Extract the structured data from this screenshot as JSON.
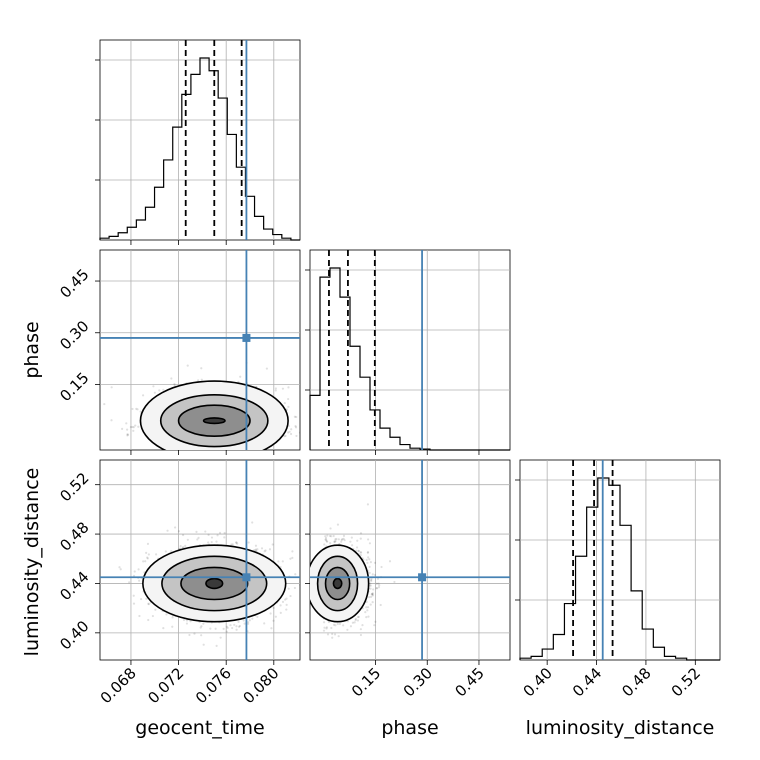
{
  "chart_data": {
    "type": "corner",
    "parameters": [
      "geocent_time",
      "phase",
      "luminosity_distance"
    ],
    "ranges": {
      "geocent_time": [
        0.0654,
        0.0822
      ],
      "phase": [
        -0.04,
        0.54
      ],
      "luminosity_distance": [
        0.378,
        0.54
      ]
    },
    "ticks": {
      "geocent_time": [
        0.068,
        0.072,
        0.076,
        0.08
      ],
      "phase": [
        0.15,
        0.3,
        0.45
      ],
      "luminosity_distance": [
        0.4,
        0.44,
        0.48,
        0.52
      ]
    },
    "tick_labels": {
      "geocent_time": [
        "0.068",
        "0.072",
        "0.076",
        "0.080"
      ],
      "phase": [
        "0.15",
        "0.30",
        "0.45"
      ],
      "luminosity_distance": [
        "0.40",
        "0.44",
        "0.48",
        "0.52"
      ]
    },
    "truths": {
      "geocent_time": 0.0777,
      "phase": 0.285,
      "luminosity_distance": 0.445
    },
    "quantiles": {
      "geocent_time": [
        0.0726,
        0.075,
        0.0773
      ],
      "phase": [
        0.015,
        0.07,
        0.148
      ],
      "luminosity_distance": [
        0.421,
        0.438,
        0.453
      ]
    },
    "histograms": {
      "geocent_time": {
        "edges_range": [
          0.0654,
          0.0822
        ],
        "counts": [
          1,
          2,
          4,
          7,
          11,
          18,
          29,
          44,
          62,
          80,
          91,
          100,
          93,
          78,
          58,
          40,
          24,
          13,
          6,
          3,
          1,
          0
        ]
      },
      "phase": {
        "edges_range": [
          -0.04,
          0.54
        ],
        "counts": [
          30,
          95,
          100,
          84,
          57,
          40,
          22,
          12,
          7,
          3,
          1,
          0.5,
          0,
          0,
          0,
          0,
          0,
          0,
          0,
          0
        ]
      },
      "luminosity_distance": {
        "edges_range": [
          0.378,
          0.54
        ],
        "counts": [
          1,
          2,
          6,
          14,
          31,
          57,
          84,
          100,
          96,
          74,
          38,
          17,
          7,
          2,
          1,
          0,
          0,
          0
        ]
      }
    },
    "posterior_2d": {
      "phase_vs_geocent_time": {
        "center": [
          0.075,
          0.045
        ],
        "spread": [
          0.0023,
          0.04
        ],
        "contour_levels": [
          {
            "rx": 0.0009,
            "ry": 0.008
          },
          {
            "rx": 0.003,
            "ry": 0.045
          },
          {
            "rx": 0.0045,
            "ry": 0.075
          },
          {
            "rx": 0.0062,
            "ry": 0.115
          }
        ]
      },
      "luminosity_distance_vs_geocent_time": {
        "center": [
          0.075,
          0.44
        ],
        "spread": [
          0.0023,
          0.013
        ],
        "contour_levels": [
          {
            "rx": 0.0007,
            "ry": 0.004
          },
          {
            "rx": 0.0028,
            "ry": 0.013
          },
          {
            "rx": 0.0044,
            "ry": 0.022
          },
          {
            "rx": 0.006,
            "ry": 0.031
          }
        ]
      },
      "luminosity_distance_vs_phase": {
        "center": [
          0.04,
          0.44
        ],
        "spread": [
          0.04,
          0.013
        ],
        "contour_levels": [
          {
            "rx": 0.012,
            "ry": 0.004
          },
          {
            "rx": 0.035,
            "ry": 0.013
          },
          {
            "rx": 0.058,
            "ry": 0.022
          },
          {
            "rx": 0.09,
            "ry": 0.031
          }
        ]
      }
    },
    "xlabels": [
      "geocent_time",
      "phase",
      "luminosity_distance"
    ],
    "ylabels": [
      "phase",
      "luminosity_distance"
    ],
    "grid": true
  }
}
